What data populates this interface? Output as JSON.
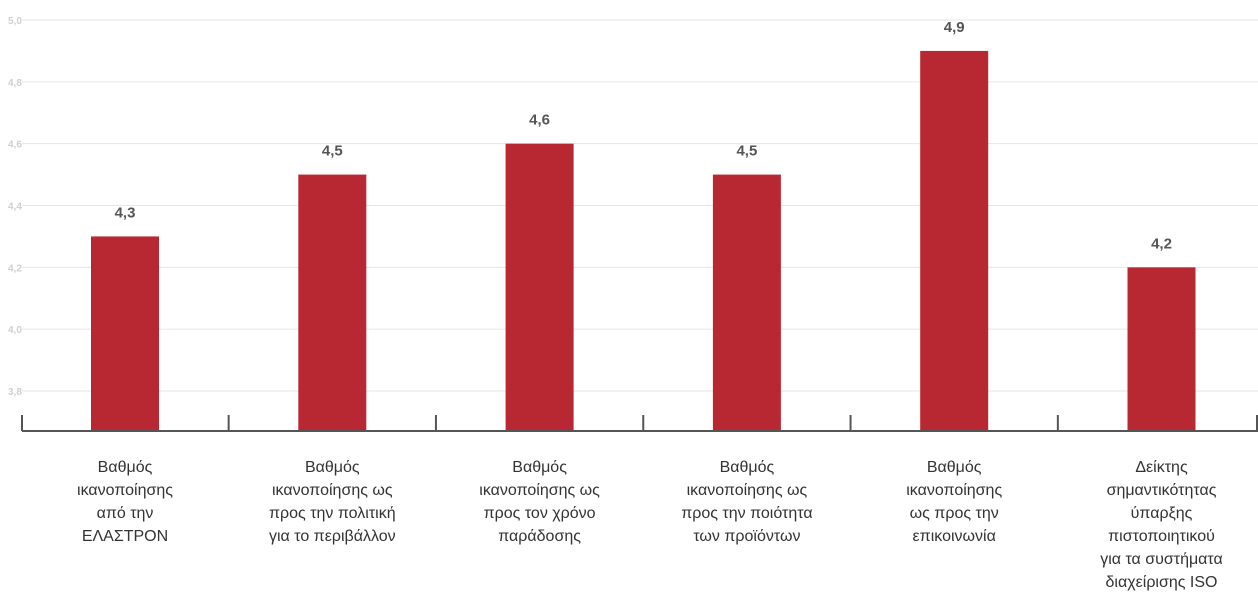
{
  "chart_data": {
    "type": "bar",
    "title": "",
    "xlabel": "",
    "ylabel": "",
    "ylim": [
      3.7,
      5.0
    ],
    "yticks": [
      "5,0",
      "4,8",
      "4,6",
      "4,4",
      "4,2",
      "4,0",
      "3,8"
    ],
    "ytick_values": [
      5.0,
      4.8,
      4.6,
      4.4,
      4.2,
      4.0,
      3.8
    ],
    "grid": true,
    "categories": [
      "Βαθμός\nικανοποίησης\nαπό την\nΕΛΑΣΤΡΟΝ",
      "Βαθμός\nικανοποίησης ως\nπρος την πολιτική\nγια το περιβάλλον",
      "Βαθμός\nικανοποίησης ως\nπρος τον χρόνο\nπαράδοσης",
      "Βαθμός\nικανοποίησης ως\nπρος την ποιότητα\nτων προϊόντων",
      "Βαθμός\nικανοποίησης\nως προς την\nεπικοινωνία",
      "Δείκτης\nσημαντικότητας\nύπαρξης\nπιστοποιητικού\nγια τα συστήματα\nδιαχείρισης ISO"
    ],
    "values": [
      4.3,
      4.5,
      4.6,
      4.5,
      4.9,
      4.2
    ],
    "data_labels": [
      "4,3",
      "4,5",
      "4,6",
      "4,5",
      "4,9",
      "4,2"
    ],
    "colors": {
      "bar": "#b82832",
      "grid": "#e6e6e6",
      "axis": "#555555",
      "tick_text": "#d0d0d0",
      "label_text": "#555555"
    }
  }
}
